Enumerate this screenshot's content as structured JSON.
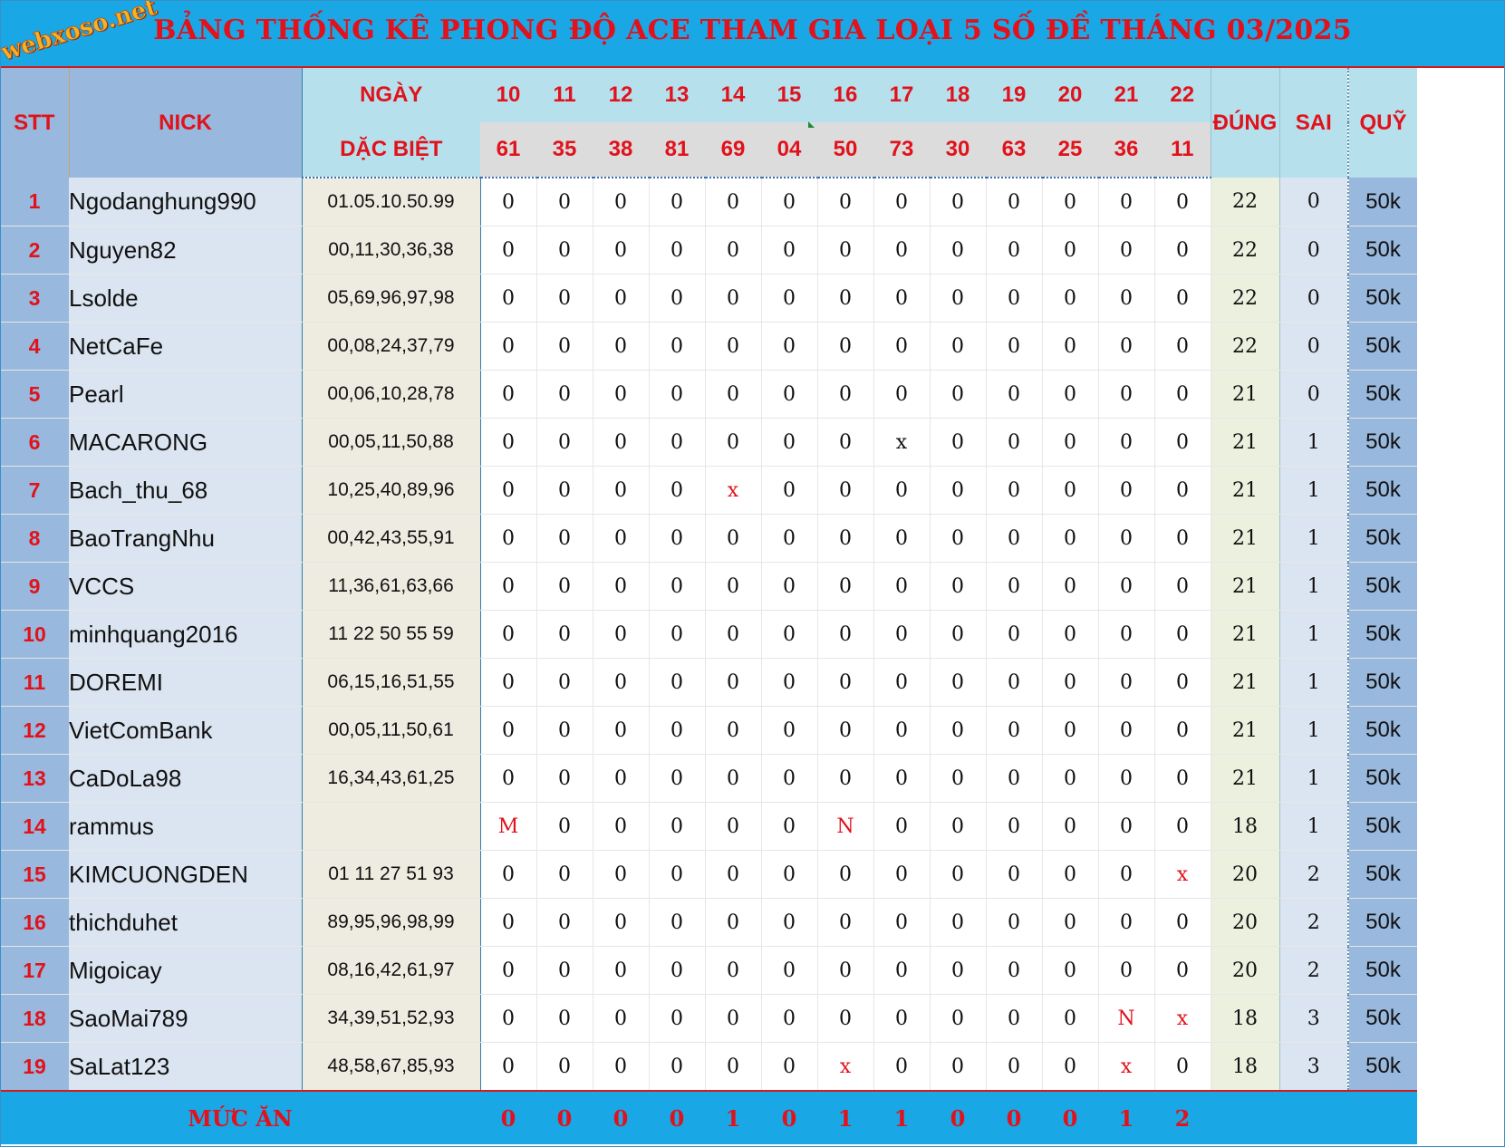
{
  "title": "BẢNG THỐNG KÊ PHONG ĐỘ ACE THAM GIA LOẠI 5 SỐ ĐỀ THÁNG 03/2025",
  "logo": "webxoso.net",
  "headers": {
    "stt": "STT",
    "nick": "NICK",
    "ngay": "NGÀY",
    "dac_biet": "DẶC BIỆT",
    "dung": "ĐÚNG",
    "sai": "SAI",
    "quy": "QUỸ"
  },
  "days": [
    "10",
    "11",
    "12",
    "13",
    "14",
    "15",
    "16",
    "17",
    "18",
    "19",
    "20",
    "21",
    "22"
  ],
  "special_numbers": [
    "61",
    "35",
    "38",
    "81",
    "69",
    "04",
    "50",
    "73",
    "30",
    "63",
    "25",
    "36",
    "11"
  ],
  "rows": [
    {
      "stt": "1",
      "nick": "Ngodanghung990",
      "numbers": "01.05.10.50.99",
      "cells": [
        "0",
        "0",
        "0",
        "0",
        "0",
        "0",
        "0",
        "0",
        "0",
        "0",
        "0",
        "0",
        "0"
      ],
      "dung": "22",
      "sai": "0",
      "quy": "50k"
    },
    {
      "stt": "2",
      "nick": "Nguyen82",
      "numbers": "00,11,30,36,38",
      "cells": [
        "0",
        "0",
        "0",
        "0",
        "0",
        "0",
        "0",
        "0",
        "0",
        "0",
        "0",
        "0",
        "0"
      ],
      "dung": "22",
      "sai": "0",
      "quy": "50k"
    },
    {
      "stt": "3",
      "nick": "Lsolde",
      "numbers": "05,69,96,97,98",
      "cells": [
        "0",
        "0",
        "0",
        "0",
        "0",
        "0",
        "0",
        "0",
        "0",
        "0",
        "0",
        "0",
        "0"
      ],
      "dung": "22",
      "sai": "0",
      "quy": "50k"
    },
    {
      "stt": "4",
      "nick": "NetCaFe",
      "numbers": "00,08,24,37,79",
      "cells": [
        "0",
        "0",
        "0",
        "0",
        "0",
        "0",
        "0",
        "0",
        "0",
        "0",
        "0",
        "0",
        "0"
      ],
      "dung": "22",
      "sai": "0",
      "quy": "50k"
    },
    {
      "stt": "5",
      "nick": "Pearl",
      "numbers": "00,06,10,28,78",
      "cells": [
        "0",
        "0",
        "0",
        "0",
        "0",
        "0",
        "0",
        "0",
        "0",
        "0",
        "0",
        "0",
        "0"
      ],
      "dung": "21",
      "sai": "0",
      "quy": "50k"
    },
    {
      "stt": "6",
      "nick": "MACARONG",
      "numbers": "00,05,11,50,88",
      "cells": [
        "0",
        "0",
        "0",
        "0",
        "0",
        "0",
        "0",
        "x",
        "0",
        "0",
        "0",
        "0",
        "0"
      ],
      "dung": "21",
      "sai": "1",
      "quy": "50k"
    },
    {
      "stt": "7",
      "nick": "Bach_thu_68",
      "numbers": "10,25,40,89,96",
      "cells": [
        "0",
        "0",
        "0",
        "0",
        "x",
        "0",
        "0",
        "0",
        "0",
        "0",
        "0",
        "0",
        "0"
      ],
      "red": [
        4
      ],
      "dung": "21",
      "sai": "1",
      "quy": "50k"
    },
    {
      "stt": "8",
      "nick": "BaoTrangNhu",
      "numbers": "00,42,43,55,91",
      "cells": [
        "0",
        "0",
        "0",
        "0",
        "0",
        "0",
        "0",
        "0",
        "0",
        "0",
        "0",
        "0",
        "0"
      ],
      "dung": "21",
      "sai": "1",
      "quy": "50k"
    },
    {
      "stt": "9",
      "nick": "VCCS",
      "numbers": "11,36,61,63,66",
      "cells": [
        "0",
        "0",
        "0",
        "0",
        "0",
        "0",
        "0",
        "0",
        "0",
        "0",
        "0",
        "0",
        "0"
      ],
      "dung": "21",
      "sai": "1",
      "quy": "50k"
    },
    {
      "stt": "10",
      "nick": "minhquang2016",
      "numbers": "11 22 50 55 59",
      "cells": [
        "0",
        "0",
        "0",
        "0",
        "0",
        "0",
        "0",
        "0",
        "0",
        "0",
        "0",
        "0",
        "0"
      ],
      "dung": "21",
      "sai": "1",
      "quy": "50k"
    },
    {
      "stt": "11",
      "nick": "DOREMI",
      "numbers": "06,15,16,51,55",
      "cells": [
        "0",
        "0",
        "0",
        "0",
        "0",
        "0",
        "0",
        "0",
        "0",
        "0",
        "0",
        "0",
        "0"
      ],
      "dung": "21",
      "sai": "1",
      "quy": "50k"
    },
    {
      "stt": "12",
      "nick": "VietComBank",
      "numbers": "00,05,11,50,61",
      "cells": [
        "0",
        "0",
        "0",
        "0",
        "0",
        "0",
        "0",
        "0",
        "0",
        "0",
        "0",
        "0",
        "0"
      ],
      "dung": "21",
      "sai": "1",
      "quy": "50k"
    },
    {
      "stt": "13",
      "nick": "CaDoLa98",
      "numbers": "16,34,43,61,25",
      "cells": [
        "0",
        "0",
        "0",
        "0",
        "0",
        "0",
        "0",
        "0",
        "0",
        "0",
        "0",
        "0",
        "0"
      ],
      "dung": "21",
      "sai": "1",
      "quy": "50k"
    },
    {
      "stt": "14",
      "nick": "rammus",
      "numbers": "",
      "cells": [
        "M",
        "0",
        "0",
        "0",
        "0",
        "0",
        "N",
        "0",
        "0",
        "0",
        "0",
        "0",
        "0"
      ],
      "red": [
        0,
        6
      ],
      "dung": "18",
      "sai": "1",
      "quy": "50k"
    },
    {
      "stt": "15",
      "nick": "KIMCUONGDEN",
      "numbers": "01 11 27 51 93",
      "cells": [
        "0",
        "0",
        "0",
        "0",
        "0",
        "0",
        "0",
        "0",
        "0",
        "0",
        "0",
        "0",
        "x"
      ],
      "red": [
        12
      ],
      "dung": "20",
      "sai": "2",
      "quy": "50k"
    },
    {
      "stt": "16",
      "nick": "thichduhet",
      "numbers": "89,95,96,98,99",
      "cells": [
        "0",
        "0",
        "0",
        "0",
        "0",
        "0",
        "0",
        "0",
        "0",
        "0",
        "0",
        "0",
        "0"
      ],
      "dung": "20",
      "sai": "2",
      "quy": "50k"
    },
    {
      "stt": "17",
      "nick": "Migoicay",
      "numbers": "08,16,42,61,97",
      "cells": [
        "0",
        "0",
        "0",
        "0",
        "0",
        "0",
        "0",
        "0",
        "0",
        "0",
        "0",
        "0",
        "0"
      ],
      "dung": "20",
      "sai": "2",
      "quy": "50k"
    },
    {
      "stt": "18",
      "nick": "SaoMai789",
      "numbers": "34,39,51,52,93",
      "cells": [
        "0",
        "0",
        "0",
        "0",
        "0",
        "0",
        "0",
        "0",
        "0",
        "0",
        "0",
        "N",
        "x"
      ],
      "red": [
        11,
        12
      ],
      "dung": "18",
      "sai": "3",
      "quy": "50k"
    },
    {
      "stt": "19",
      "nick": "SaLat123",
      "numbers": "48,58,67,85,93",
      "cells": [
        "0",
        "0",
        "0",
        "0",
        "0",
        "0",
        "x",
        "0",
        "0",
        "0",
        "0",
        "x",
        "0"
      ],
      "red": [
        6,
        11
      ],
      "dung": "18",
      "sai": "3",
      "quy": "50k"
    }
  ],
  "footer": {
    "label": "MỨC ĂN",
    "values": [
      "0",
      "0",
      "0",
      "0",
      "1",
      "0",
      "1",
      "1",
      "0",
      "0",
      "0",
      "1",
      "2"
    ]
  },
  "colors": {
    "title_bg": "#1aa7e6",
    "title_text": "#e1121b",
    "accent_red": "#e1121b",
    "stt_bg": "#98b8dd",
    "nick_bg": "#dbe5f1",
    "numbers_bg": "#eeebe0",
    "dung_bg": "#ebf1de",
    "header_bg": "#b6e0ec"
  }
}
